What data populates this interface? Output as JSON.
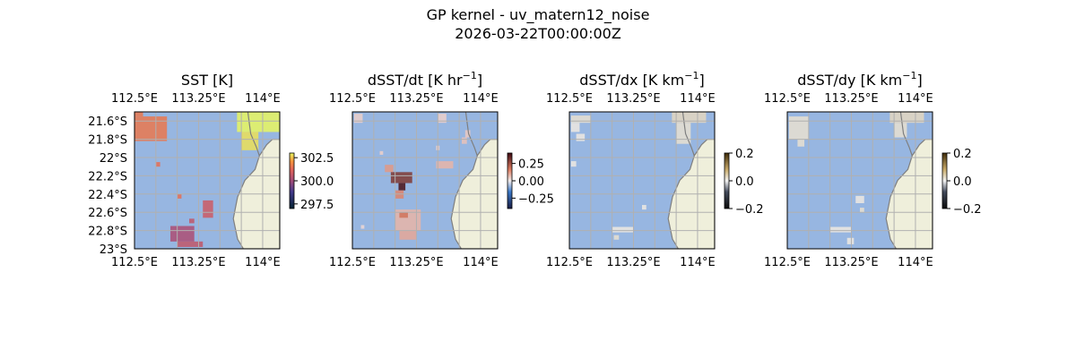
{
  "figure": {
    "title_line1": "GP kernel - uv_matern12_noise",
    "title_line2": "2026-03-22T00:00:00Z"
  },
  "colors": {
    "ocean": "#97b6e1",
    "land": "#efefdb",
    "coast": "#7f7f7f",
    "grid": "#b0b0b0"
  },
  "chart_data": [
    {
      "type": "heatmap",
      "title_main": "SST [K]",
      "title_exp": "",
      "title_tail": "",
      "lon_ticks": [
        "112.5°E",
        "113.25°E",
        "114°E"
      ],
      "lon_values": [
        112.5,
        113.25,
        114.0
      ],
      "lat_ticks": [
        "21.6°S",
        "21.8°S",
        "22°S",
        "22.2°S",
        "22.4°S",
        "22.6°S",
        "22.8°S",
        "23°S"
      ],
      "lat_values": [
        -21.6,
        -21.8,
        -22.0,
        -22.2,
        -22.4,
        -22.6,
        -22.8,
        -23.0
      ],
      "xlim": [
        112.5,
        114.2
      ],
      "ylim": [
        -23.0,
        -21.5
      ],
      "colorbar": {
        "ticks": [
          "302.5",
          "300.0",
          "297.5"
        ],
        "tick_values": [
          302.5,
          300.0,
          297.5
        ],
        "range": [
          297.0,
          303.0
        ],
        "colormap": "thermal"
      },
      "cells": [
        {
          "lon0": 112.5,
          "lon1": 112.88,
          "lat0": -21.82,
          "lat1": -21.55,
          "value": 301.6
        },
        {
          "lon0": 112.5,
          "lon1": 112.6,
          "lat0": -21.55,
          "lat1": -21.5,
          "value": 301.6
        },
        {
          "lon0": 113.7,
          "lon1": 114.2,
          "lat0": -21.72,
          "lat1": -21.5,
          "value": 303.0
        },
        {
          "lon0": 113.75,
          "lon1": 113.95,
          "lat0": -21.92,
          "lat1": -21.72,
          "value": 302.8
        },
        {
          "lon0": 112.75,
          "lon1": 112.8,
          "lat0": -22.1,
          "lat1": -22.05,
          "value": 301.4
        },
        {
          "lon0": 113.0,
          "lon1": 113.05,
          "lat0": -22.45,
          "lat1": -22.4,
          "value": 301.4
        },
        {
          "lon0": 113.3,
          "lon1": 113.42,
          "lat0": -22.66,
          "lat1": -22.47,
          "value": 300.8
        },
        {
          "lon0": 112.92,
          "lon1": 113.2,
          "lat0": -22.92,
          "lat1": -22.75,
          "value": 300.2
        },
        {
          "lon0": 113.0,
          "lon1": 113.3,
          "lat0": -22.98,
          "lat1": -22.92,
          "value": 300.6
        },
        {
          "lon0": 113.14,
          "lon1": 113.2,
          "lat0": -22.72,
          "lat1": -22.67,
          "value": 300.6
        }
      ]
    },
    {
      "type": "heatmap",
      "title_main": "dSST/dt [K hr",
      "title_exp": "−1",
      "title_tail": "]",
      "lon_ticks": [
        "112.5°E",
        "113.25°E",
        "114°E"
      ],
      "lon_values": [
        112.5,
        113.25,
        114.0
      ],
      "lat_ticks": [],
      "lat_values": [],
      "xlim": [
        112.5,
        114.2
      ],
      "ylim": [
        -23.0,
        -21.5
      ],
      "colorbar": {
        "ticks": [
          "0.25",
          "0.00",
          "−0.25"
        ],
        "tick_values": [
          0.25,
          0.0,
          -0.25
        ],
        "range": [
          -0.4,
          0.4
        ],
        "colormap": "balance"
      },
      "cells": [
        {
          "lon0": 112.52,
          "lon1": 112.62,
          "lat0": -21.62,
          "lat1": -21.52,
          "value": 0.04
        },
        {
          "lon0": 113.5,
          "lon1": 113.6,
          "lat0": -21.62,
          "lat1": -21.52,
          "value": 0.04
        },
        {
          "lon0": 113.82,
          "lon1": 113.88,
          "lat0": -21.78,
          "lat1": -21.7,
          "value": 0.05
        },
        {
          "lon0": 113.78,
          "lon1": 113.84,
          "lat0": -21.85,
          "lat1": -21.78,
          "value": 0.06
        },
        {
          "lon0": 113.48,
          "lon1": 113.52,
          "lat0": -21.92,
          "lat1": -21.87,
          "value": 0.04
        },
        {
          "lon0": 112.82,
          "lon1": 112.86,
          "lat0": -21.97,
          "lat1": -21.93,
          "value": 0.04
        },
        {
          "lon0": 113.48,
          "lon1": 113.68,
          "lat0": -22.12,
          "lat1": -22.04,
          "value": 0.08
        },
        {
          "lon0": 112.88,
          "lon1": 112.98,
          "lat0": -22.16,
          "lat1": -22.08,
          "value": 0.12
        },
        {
          "lon0": 112.95,
          "lon1": 113.2,
          "lat0": -22.28,
          "lat1": -22.16,
          "value": 0.3
        },
        {
          "lon0": 113.04,
          "lon1": 113.12,
          "lat0": -22.36,
          "lat1": -22.28,
          "value": 0.38
        },
        {
          "lon0": 113.0,
          "lon1": 113.1,
          "lat0": -22.45,
          "lat1": -22.36,
          "value": 0.15
        },
        {
          "lon0": 113.0,
          "lon1": 113.3,
          "lat0": -22.8,
          "lat1": -22.57,
          "value": 0.08
        },
        {
          "lon0": 113.05,
          "lon1": 113.15,
          "lat0": -22.66,
          "lat1": -22.6,
          "value": 0.18
        },
        {
          "lon0": 113.05,
          "lon1": 113.25,
          "lat0": -22.9,
          "lat1": -22.8,
          "value": 0.1
        },
        {
          "lon0": 112.6,
          "lon1": 112.64,
          "lat0": -22.78,
          "lat1": -22.74,
          "value": 0.03
        }
      ]
    },
    {
      "type": "heatmap",
      "title_main": "dSST/dx [K km",
      "title_exp": "−1",
      "title_tail": "]",
      "lon_ticks": [
        "112.5°E",
        "113.25°E",
        "114°E"
      ],
      "lon_values": [
        112.5,
        113.25,
        114.0
      ],
      "lat_ticks": [],
      "lat_values": [],
      "xlim": [
        112.5,
        114.2
      ],
      "ylim": [
        -23.0,
        -21.5
      ],
      "colorbar": {
        "ticks": [
          "0.2",
          "0.0",
          "−0.2"
        ],
        "tick_values": [
          0.2,
          0.0,
          -0.2
        ],
        "range": [
          -0.2,
          0.2
        ],
        "colormap": "dark-gold"
      },
      "cells": [
        {
          "lon0": 112.52,
          "lon1": 112.75,
          "lat0": -21.62,
          "lat1": -21.54,
          "value": 0.02
        },
        {
          "lon0": 112.52,
          "lon1": 112.62,
          "lat0": -21.72,
          "lat1": -21.62,
          "value": 0.01
        },
        {
          "lon0": 112.58,
          "lon1": 112.68,
          "lat0": -21.82,
          "lat1": -21.74,
          "value": 0.01
        },
        {
          "lon0": 113.7,
          "lon1": 114.1,
          "lat0": -21.62,
          "lat1": -21.5,
          "value": 0.03
        },
        {
          "lon0": 113.75,
          "lon1": 113.92,
          "lat0": -21.85,
          "lat1": -21.62,
          "value": 0.02
        },
        {
          "lon0": 112.52,
          "lon1": 112.58,
          "lat0": -22.1,
          "lat1": -22.04,
          "value": 0.01
        },
        {
          "lon0": 113.35,
          "lon1": 113.4,
          "lat0": -22.57,
          "lat1": -22.52,
          "value": 0.01
        },
        {
          "lon0": 113.0,
          "lon1": 113.25,
          "lat0": -22.82,
          "lat1": -22.76,
          "value": 0.01
        },
        {
          "lon0": 113.02,
          "lon1": 113.08,
          "lat0": -22.9,
          "lat1": -22.85,
          "value": 0.02
        }
      ]
    },
    {
      "type": "heatmap",
      "title_main": "dSST/dy [K km",
      "title_exp": "−1",
      "title_tail": "]",
      "lon_ticks": [
        "112.5°E",
        "113.25°E",
        "114°E"
      ],
      "lon_values": [
        112.5,
        113.25,
        114.0
      ],
      "lat_ticks": [],
      "lat_values": [],
      "xlim": [
        112.5,
        114.2
      ],
      "ylim": [
        -23.0,
        -21.5
      ],
      "colorbar": {
        "ticks": [
          "0.2",
          "0.0",
          "−0.2"
        ],
        "tick_values": [
          0.2,
          0.0,
          -0.2
        ],
        "range": [
          -0.2,
          0.2
        ],
        "colormap": "dark-gold"
      },
      "cells": [
        {
          "lon0": 112.52,
          "lon1": 112.75,
          "lat0": -21.8,
          "lat1": -21.55,
          "value": 0.02
        },
        {
          "lon0": 112.62,
          "lon1": 112.7,
          "lat0": -21.88,
          "lat1": -21.8,
          "value": 0.02
        },
        {
          "lon0": 113.7,
          "lon1": 114.1,
          "lat0": -21.62,
          "lat1": -21.5,
          "value": 0.03
        },
        {
          "lon0": 113.75,
          "lon1": 113.9,
          "lat0": -21.78,
          "lat1": -21.62,
          "value": 0.02
        },
        {
          "lon0": 113.3,
          "lon1": 113.4,
          "lat0": -22.5,
          "lat1": -22.42,
          "value": 0.01
        },
        {
          "lon0": 113.35,
          "lon1": 113.4,
          "lat0": -22.6,
          "lat1": -22.55,
          "value": 0.02
        },
        {
          "lon0": 113.0,
          "lon1": 113.25,
          "lat0": -22.82,
          "lat1": -22.76,
          "value": 0.01
        },
        {
          "lon0": 113.2,
          "lon1": 113.28,
          "lat0": -22.95,
          "lat1": -22.88,
          "value": 0.01
        }
      ]
    }
  ]
}
